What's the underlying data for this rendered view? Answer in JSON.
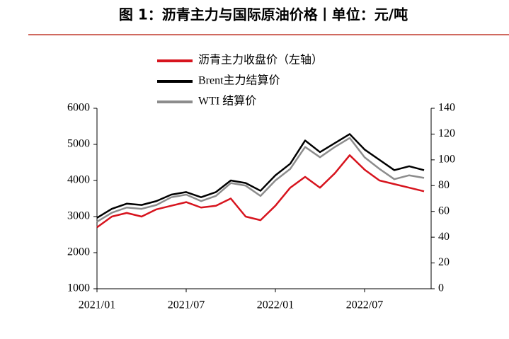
{
  "chart_data": {
    "type": "line",
    "title": "图 1：沥青主力与国际原油价格丨单位：元/吨",
    "x": [
      "2021/01",
      "2021/02",
      "2021/03",
      "2021/04",
      "2021/05",
      "2021/06",
      "2021/07",
      "2021/08",
      "2021/09",
      "2021/10",
      "2021/11",
      "2021/12",
      "2022/01",
      "2022/02",
      "2022/03",
      "2022/04",
      "2022/05",
      "2022/06",
      "2022/07",
      "2022/08",
      "2022/09",
      "2022/10",
      "2022/11"
    ],
    "xticks": [
      "2021/01",
      "2021/07",
      "2022/01",
      "2022/07"
    ],
    "series": [
      {
        "name": "沥青主力收盘价（左轴）",
        "color": "#d7141e",
        "axis": "y",
        "values": [
          2700,
          3000,
          3100,
          3000,
          3200,
          3300,
          3400,
          3250,
          3300,
          3500,
          3000,
          2900,
          3300,
          3800,
          4100,
          3800,
          4200,
          4700,
          4300,
          4000,
          3900,
          3800,
          3700
        ]
      },
      {
        "name": "Brent主力结算价",
        "color": "#000000",
        "axis": "y2",
        "values": [
          55,
          62,
          66,
          65,
          68,
          73,
          75,
          71,
          75,
          84,
          82,
          76,
          88,
          97,
          115,
          106,
          113,
          120,
          108,
          100,
          92,
          95,
          92
        ]
      },
      {
        "name": "WTI 结算价",
        "color": "#8c8c8c",
        "axis": "y2",
        "values": [
          52,
          59,
          63,
          62,
          65,
          71,
          73,
          68,
          72,
          82,
          80,
          72,
          84,
          93,
          110,
          102,
          110,
          117,
          102,
          93,
          85,
          88,
          86
        ]
      }
    ],
    "ylim": [
      1000,
      6000
    ],
    "yticks": [
      1000,
      2000,
      3000,
      4000,
      5000,
      6000
    ],
    "y2lim": [
      0,
      140
    ],
    "y2ticks": [
      0,
      20,
      40,
      60,
      80,
      100,
      120,
      140
    ],
    "grid": false
  }
}
